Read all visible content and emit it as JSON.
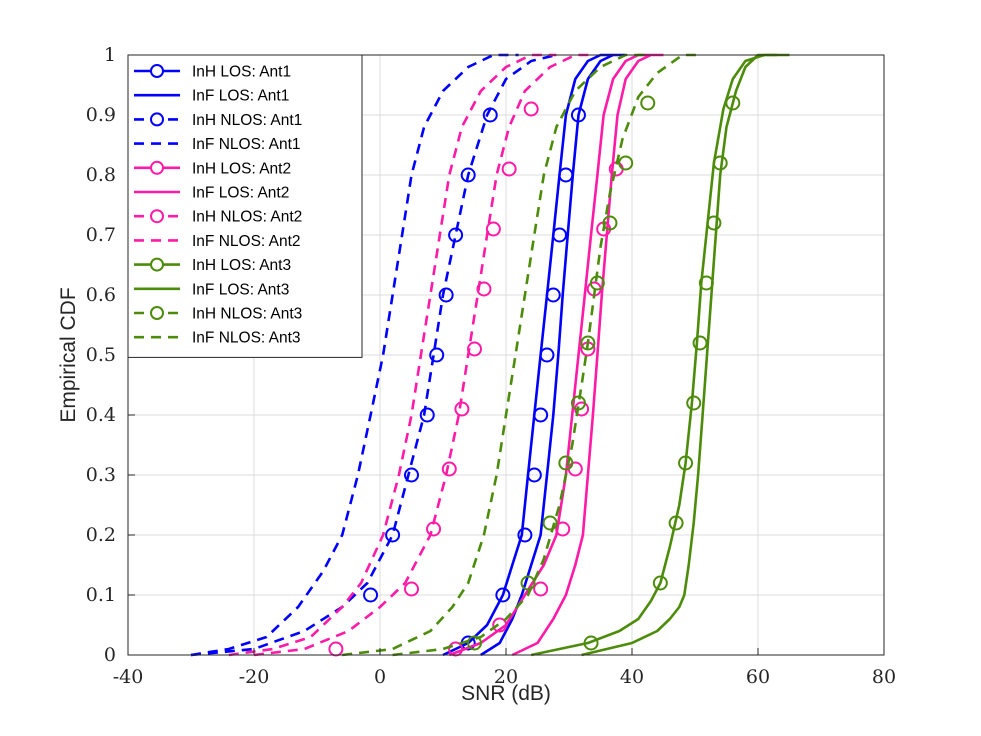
{
  "chart_data": {
    "type": "line",
    "title": "",
    "xlabel": "SNR (dB)",
    "ylabel": "Empirical CDF",
    "xlim": [
      -40,
      80
    ],
    "ylim": [
      0,
      1
    ],
    "xticks": [
      -40,
      -20,
      0,
      20,
      40,
      60,
      80
    ],
    "yticks": [
      0,
      0.1,
      0.2,
      0.3,
      0.4,
      0.5,
      0.6,
      0.7,
      0.8,
      0.9,
      1
    ],
    "grid": true,
    "legend_position": "top-left",
    "colors": {
      "Ant1": "#0000ff",
      "Ant2": "#ff1aa8",
      "Ant3": "#4d8c0a"
    },
    "series": [
      {
        "name": "InH LOS: Ant1",
        "antenna": "Ant1",
        "scenario": "InH",
        "los": "LOS",
        "line": "solid",
        "marker": "circle",
        "x": [
          10,
          14,
          17,
          19.5,
          21,
          22.5,
          23.5,
          24.5,
          25.5,
          26.5,
          27.5,
          28.5,
          29.5,
          31,
          33,
          35,
          37
        ],
        "y": [
          0,
          0.02,
          0.05,
          0.1,
          0.15,
          0.2,
          0.3,
          0.4,
          0.5,
          0.6,
          0.7,
          0.8,
          0.9,
          0.96,
          0.99,
          1,
          1
        ],
        "marker_x": [
          14,
          19.5,
          23,
          24.5,
          25.5,
          26.5,
          27.5,
          28.5,
          29.5,
          31.5
        ],
        "marker_y": [
          0.02,
          0.1,
          0.2,
          0.3,
          0.4,
          0.5,
          0.6,
          0.7,
          0.8,
          0.9
        ]
      },
      {
        "name": "InF LOS: Ant1",
        "antenna": "Ant1",
        "scenario": "InF",
        "los": "LOS",
        "line": "solid",
        "marker": "none",
        "x": [
          16,
          19,
          21,
          22.5,
          24,
          25.5,
          26.5,
          27.5,
          28.3,
          29,
          29.8,
          30.6,
          31.5,
          33,
          35,
          37,
          39
        ],
        "y": [
          0,
          0.02,
          0.06,
          0.1,
          0.15,
          0.2,
          0.3,
          0.4,
          0.5,
          0.6,
          0.7,
          0.8,
          0.9,
          0.96,
          0.99,
          1,
          1
        ],
        "marker_x": [],
        "marker_y": []
      },
      {
        "name": "InH NLOS: Ant1",
        "antenna": "Ant1",
        "scenario": "InH",
        "los": "NLOS",
        "line": "dashed",
        "marker": "circle",
        "x": [
          -30,
          -20,
          -12,
          -6,
          -2,
          2,
          4.5,
          7,
          8.5,
          10,
          12,
          14,
          17,
          20,
          24,
          28
        ],
        "y": [
          0,
          0.01,
          0.04,
          0.08,
          0.12,
          0.2,
          0.3,
          0.4,
          0.5,
          0.6,
          0.7,
          0.8,
          0.9,
          0.96,
          0.99,
          1
        ],
        "marker_x": [
          -1.5,
          2,
          5,
          7.5,
          9,
          10.5,
          12,
          14,
          17.5
        ],
        "marker_y": [
          0.1,
          0.2,
          0.3,
          0.4,
          0.5,
          0.6,
          0.7,
          0.8,
          0.9
        ]
      },
      {
        "name": "InF NLOS: Ant1",
        "antenna": "Ant1",
        "scenario": "InF",
        "los": "NLOS",
        "line": "dashed",
        "marker": "none",
        "x": [
          -30,
          -24,
          -18,
          -13,
          -9,
          -6,
          -3.5,
          -1.5,
          0.5,
          2,
          3.5,
          5,
          7,
          10,
          14,
          18,
          22
        ],
        "y": [
          0,
          0.01,
          0.03,
          0.08,
          0.14,
          0.2,
          0.3,
          0.4,
          0.5,
          0.6,
          0.7,
          0.8,
          0.88,
          0.94,
          0.98,
          1,
          1
        ],
        "marker_x": [],
        "marker_y": []
      },
      {
        "name": "InH LOS: Ant2",
        "antenna": "Ant2",
        "scenario": "InH",
        "los": "LOS",
        "line": "solid",
        "marker": "circle",
        "x": [
          11,
          16,
          20,
          23,
          26,
          28,
          29.5,
          30.5,
          31.5,
          32.5,
          33.5,
          34.5,
          35.5,
          37,
          39,
          41,
          43
        ],
        "y": [
          0,
          0.02,
          0.05,
          0.1,
          0.15,
          0.2,
          0.3,
          0.4,
          0.5,
          0.6,
          0.7,
          0.8,
          0.9,
          0.96,
          0.99,
          1,
          1
        ],
        "marker_x": [
          12,
          19,
          25.5,
          29,
          31,
          32,
          33,
          34,
          35.5,
          37.5
        ],
        "marker_y": [
          0.01,
          0.05,
          0.11,
          0.21,
          0.31,
          0.41,
          0.51,
          0.61,
          0.71,
          0.81
        ]
      },
      {
        "name": "InF LOS: Ant2",
        "antenna": "Ant2",
        "scenario": "InF",
        "los": "LOS",
        "line": "solid",
        "marker": "none",
        "x": [
          21,
          25,
          27.5,
          29.5,
          31,
          32.2,
          33,
          33.8,
          34.5,
          35.2,
          36,
          36.8,
          37.7,
          39,
          41,
          43,
          45
        ],
        "y": [
          0,
          0.02,
          0.06,
          0.1,
          0.15,
          0.2,
          0.3,
          0.4,
          0.5,
          0.6,
          0.7,
          0.8,
          0.9,
          0.96,
          0.99,
          1,
          1
        ],
        "marker_x": [],
        "marker_y": []
      },
      {
        "name": "InH NLOS: Ant2",
        "antenna": "Ant2",
        "scenario": "InH",
        "los": "NLOS",
        "line": "dashed",
        "marker": "circle",
        "x": [
          -20,
          -12,
          -5,
          0,
          4,
          8,
          10.5,
          12.5,
          14,
          15.5,
          17,
          18.5,
          20.5,
          23,
          27,
          31,
          34
        ],
        "y": [
          0,
          0.01,
          0.04,
          0.08,
          0.12,
          0.2,
          0.3,
          0.4,
          0.5,
          0.6,
          0.7,
          0.8,
          0.88,
          0.94,
          0.98,
          1,
          1
        ],
        "marker_x": [
          -7,
          5,
          8.5,
          11,
          13,
          15,
          16.5,
          18,
          20.5,
          24
        ],
        "marker_y": [
          0.01,
          0.11,
          0.21,
          0.31,
          0.41,
          0.51,
          0.61,
          0.71,
          0.81,
          0.91
        ]
      },
      {
        "name": "InF NLOS: Ant2",
        "antenna": "Ant2",
        "scenario": "InF",
        "los": "NLOS",
        "line": "dashed",
        "marker": "none",
        "x": [
          -24,
          -17,
          -11,
          -6,
          -3,
          0.5,
          3,
          5,
          6.5,
          8,
          9.5,
          11,
          13,
          16,
          20,
          24,
          28
        ],
        "y": [
          0,
          0.01,
          0.03,
          0.08,
          0.12,
          0.2,
          0.3,
          0.4,
          0.5,
          0.6,
          0.7,
          0.8,
          0.88,
          0.94,
          0.98,
          1,
          1
        ],
        "marker_x": [],
        "marker_y": []
      },
      {
        "name": "InH LOS: Ant3",
        "antenna": "Ant3",
        "scenario": "InH",
        "los": "LOS",
        "line": "solid",
        "marker": "circle",
        "x": [
          24,
          33,
          38,
          41,
          43,
          44.5,
          46,
          47.5,
          48.5,
          49.5,
          50.3,
          51,
          52,
          53,
          54.5,
          56,
          58,
          61,
          65
        ],
        "y": [
          0,
          0.02,
          0.04,
          0.06,
          0.09,
          0.12,
          0.18,
          0.25,
          0.32,
          0.42,
          0.52,
          0.62,
          0.72,
          0.82,
          0.91,
          0.96,
          0.99,
          1,
          1
        ],
        "marker_x": [
          33.5,
          44.5,
          47,
          48.5,
          49.8,
          50.8,
          51.8,
          53,
          54,
          56
        ],
        "marker_y": [
          0.02,
          0.12,
          0.22,
          0.32,
          0.42,
          0.52,
          0.62,
          0.72,
          0.82,
          0.92
        ]
      },
      {
        "name": "InF LOS: Ant3",
        "antenna": "Ant3",
        "scenario": "InF",
        "los": "LOS",
        "line": "solid",
        "marker": "none",
        "x": [
          32,
          40,
          44,
          46,
          47.5,
          48.3,
          49,
          49.8,
          50.5,
          51.2,
          51.9,
          52.6,
          53.3,
          54,
          55,
          56.5,
          58,
          60,
          63
        ],
        "y": [
          0,
          0.02,
          0.04,
          0.06,
          0.08,
          0.1,
          0.15,
          0.22,
          0.3,
          0.4,
          0.5,
          0.6,
          0.7,
          0.8,
          0.88,
          0.94,
          0.98,
          1,
          1
        ],
        "marker_x": [],
        "marker_y": []
      },
      {
        "name": "InH NLOS: Ant3",
        "antenna": "Ant3",
        "scenario": "InH",
        "los": "NLOS",
        "line": "dashed",
        "marker": "circle",
        "x": [
          2,
          10,
          16,
          20,
          23.5,
          26,
          28.5,
          30.5,
          32,
          33,
          34,
          35,
          36.5,
          38.5,
          41,
          44,
          48,
          51
        ],
        "y": [
          0,
          0.01,
          0.03,
          0.06,
          0.1,
          0.16,
          0.25,
          0.35,
          0.45,
          0.52,
          0.6,
          0.68,
          0.77,
          0.86,
          0.93,
          0.97,
          1,
          1
        ],
        "marker_x": [
          15,
          23.5,
          27,
          29.5,
          31.5,
          33,
          34.5,
          36.5,
          39,
          42.5
        ],
        "marker_y": [
          0.02,
          0.12,
          0.22,
          0.32,
          0.42,
          0.52,
          0.62,
          0.72,
          0.82,
          0.92
        ]
      },
      {
        "name": "InF NLOS: Ant3",
        "antenna": "Ant3",
        "scenario": "InF",
        "los": "NLOS",
        "line": "dashed",
        "marker": "none",
        "x": [
          -6,
          2,
          8,
          11.5,
          14,
          16.5,
          18.5,
          20,
          21.5,
          23,
          24.5,
          26,
          28,
          31,
          35,
          39,
          43
        ],
        "y": [
          0,
          0.01,
          0.04,
          0.08,
          0.12,
          0.2,
          0.3,
          0.4,
          0.5,
          0.6,
          0.7,
          0.8,
          0.88,
          0.94,
          0.98,
          1,
          1
        ],
        "marker_x": [],
        "marker_y": []
      }
    ]
  }
}
